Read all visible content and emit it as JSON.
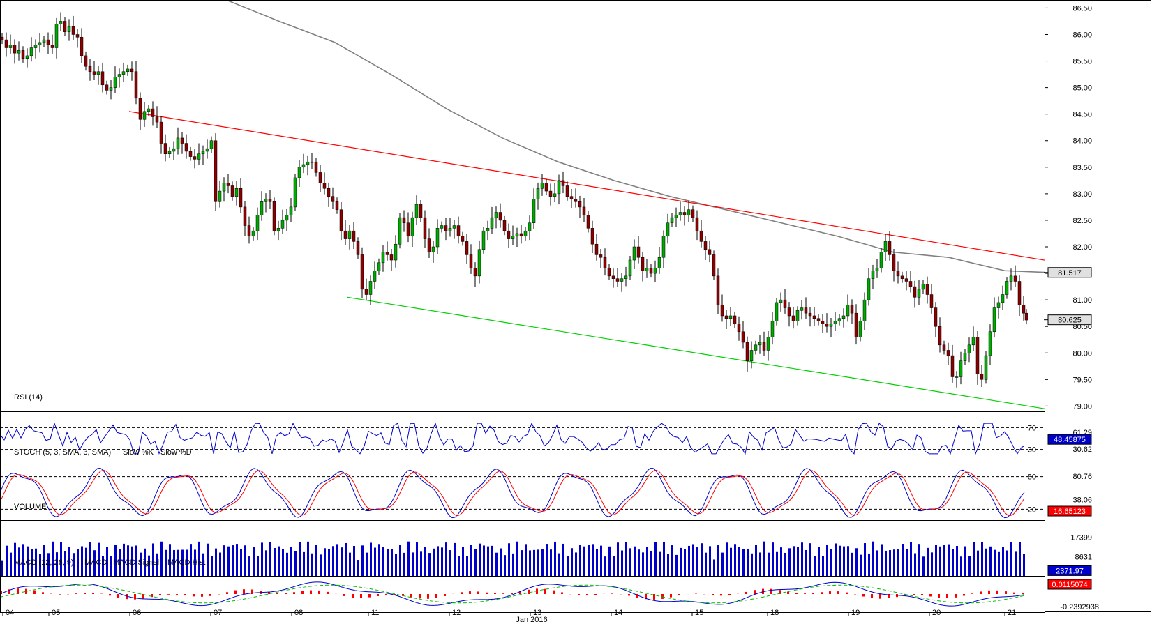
{
  "chart_data": {
    "type": "candlestick",
    "price_axis": {
      "ticks": [
        "86.50",
        "86.00",
        "85.50",
        "85.00",
        "84.50",
        "84.00",
        "83.50",
        "83.00",
        "82.50",
        "82.00",
        "81.50",
        "81.00",
        "80.50",
        "80.00",
        "79.50",
        "79.00"
      ],
      "range": [
        78.9,
        86.65
      ]
    },
    "date_axis": {
      "labels": [
        "04",
        "05",
        "06",
        "07",
        "08",
        "11",
        "12",
        "13",
        "14",
        "15",
        "18",
        "19",
        "20",
        "21"
      ],
      "month_label": "Jan 2016"
    },
    "price_series": [
      {
        "x": 0,
        "c": 85.9
      },
      {
        "x": 6,
        "c": 85.75
      },
      {
        "x": 12,
        "c": 85.8
      },
      {
        "x": 18,
        "c": 85.65
      },
      {
        "x": 24,
        "c": 85.7
      },
      {
        "x": 30,
        "c": 85.55
      },
      {
        "x": 36,
        "c": 85.6
      },
      {
        "x": 42,
        "c": 85.75
      },
      {
        "x": 48,
        "c": 85.8
      },
      {
        "x": 54,
        "c": 85.85
      },
      {
        "x": 60,
        "c": 85.9
      },
      {
        "x": 66,
        "c": 85.8
      },
      {
        "x": 72,
        "c": 85.75
      },
      {
        "x": 78,
        "c": 86.2
      },
      {
        "x": 84,
        "c": 86.25
      },
      {
        "x": 90,
        "c": 86.05
      },
      {
        "x": 96,
        "c": 86.15
      },
      {
        "x": 102,
        "c": 86.0
      },
      {
        "x": 108,
        "c": 85.95
      },
      {
        "x": 114,
        "c": 85.6
      },
      {
        "x": 120,
        "c": 85.4
      },
      {
        "x": 126,
        "c": 85.3
      },
      {
        "x": 132,
        "c": 85.25
      },
      {
        "x": 138,
        "c": 85.3
      },
      {
        "x": 144,
        "c": 85.05
      },
      {
        "x": 150,
        "c": 84.95
      },
      {
        "x": 156,
        "c": 85.0
      },
      {
        "x": 162,
        "c": 85.2
      },
      {
        "x": 168,
        "c": 85.25
      },
      {
        "x": 174,
        "c": 85.3
      },
      {
        "x": 180,
        "c": 85.35
      },
      {
        "x": 186,
        "c": 85.3
      },
      {
        "x": 192,
        "c": 84.8
      },
      {
        "x": 198,
        "c": 84.4
      },
      {
        "x": 204,
        "c": 84.55
      },
      {
        "x": 210,
        "c": 84.6
      },
      {
        "x": 216,
        "c": 84.45
      },
      {
        "x": 222,
        "c": 84.35
      },
      {
        "x": 228,
        "c": 83.95
      },
      {
        "x": 234,
        "c": 83.75
      },
      {
        "x": 240,
        "c": 83.8
      },
      {
        "x": 246,
        "c": 83.85
      },
      {
        "x": 252,
        "c": 84.05
      },
      {
        "x": 258,
        "c": 83.95
      },
      {
        "x": 264,
        "c": 83.8
      },
      {
        "x": 270,
        "c": 83.7
      },
      {
        "x": 276,
        "c": 83.65
      },
      {
        "x": 282,
        "c": 83.75
      },
      {
        "x": 288,
        "c": 83.8
      },
      {
        "x": 294,
        "c": 83.85
      },
      {
        "x": 300,
        "c": 84.0
      },
      {
        "x": 306,
        "c": 82.85
      },
      {
        "x": 312,
        "c": 83.05
      },
      {
        "x": 318,
        "c": 83.2
      },
      {
        "x": 324,
        "c": 83.15
      },
      {
        "x": 330,
        "c": 82.95
      },
      {
        "x": 336,
        "c": 83.1
      },
      {
        "x": 342,
        "c": 82.75
      },
      {
        "x": 348,
        "c": 82.4
      },
      {
        "x": 354,
        "c": 82.2
      },
      {
        "x": 360,
        "c": 82.3
      },
      {
        "x": 366,
        "c": 82.6
      },
      {
        "x": 372,
        "c": 82.85
      },
      {
        "x": 378,
        "c": 82.9
      },
      {
        "x": 384,
        "c": 82.85
      },
      {
        "x": 390,
        "c": 82.3
      },
      {
        "x": 396,
        "c": 82.35
      },
      {
        "x": 402,
        "c": 82.5
      },
      {
        "x": 408,
        "c": 82.6
      },
      {
        "x": 414,
        "c": 82.75
      },
      {
        "x": 420,
        "c": 83.3
      },
      {
        "x": 426,
        "c": 83.5
      },
      {
        "x": 432,
        "c": 83.55
      },
      {
        "x": 438,
        "c": 83.6
      },
      {
        "x": 444,
        "c": 83.6
      },
      {
        "x": 450,
        "c": 83.4
      },
      {
        "x": 456,
        "c": 83.2
      },
      {
        "x": 462,
        "c": 83.1
      },
      {
        "x": 468,
        "c": 82.95
      },
      {
        "x": 474,
        "c": 82.85
      },
      {
        "x": 480,
        "c": 82.7
      },
      {
        "x": 486,
        "c": 82.3
      },
      {
        "x": 492,
        "c": 82.15
      },
      {
        "x": 498,
        "c": 82.3
      },
      {
        "x": 504,
        "c": 82.1
      },
      {
        "x": 510,
        "c": 81.85
      },
      {
        "x": 516,
        "c": 81.2
      },
      {
        "x": 522,
        "c": 81.1
      },
      {
        "x": 528,
        "c": 81.35
      },
      {
        "x": 534,
        "c": 81.55
      },
      {
        "x": 540,
        "c": 81.7
      },
      {
        "x": 546,
        "c": 81.9
      },
      {
        "x": 552,
        "c": 81.85
      },
      {
        "x": 558,
        "c": 81.75
      },
      {
        "x": 564,
        "c": 82.05
      },
      {
        "x": 570,
        "c": 82.55
      },
      {
        "x": 576,
        "c": 82.45
      },
      {
        "x": 582,
        "c": 82.2
      },
      {
        "x": 588,
        "c": 82.55
      },
      {
        "x": 594,
        "c": 82.8
      },
      {
        "x": 600,
        "c": 82.55
      },
      {
        "x": 606,
        "c": 82.15
      },
      {
        "x": 612,
        "c": 81.9
      },
      {
        "x": 618,
        "c": 82.0
      },
      {
        "x": 624,
        "c": 82.35
      },
      {
        "x": 630,
        "c": 82.4
      },
      {
        "x": 636,
        "c": 82.3
      },
      {
        "x": 642,
        "c": 82.35
      },
      {
        "x": 648,
        "c": 82.4
      },
      {
        "x": 654,
        "c": 82.2
      },
      {
        "x": 660,
        "c": 82.1
      },
      {
        "x": 666,
        "c": 81.85
      },
      {
        "x": 672,
        "c": 81.6
      },
      {
        "x": 678,
        "c": 81.45
      },
      {
        "x": 684,
        "c": 81.95
      },
      {
        "x": 690,
        "c": 82.3
      },
      {
        "x": 696,
        "c": 82.35
      },
      {
        "x": 702,
        "c": 82.55
      },
      {
        "x": 708,
        "c": 82.65
      },
      {
        "x": 714,
        "c": 82.5
      },
      {
        "x": 720,
        "c": 82.3
      },
      {
        "x": 726,
        "c": 82.15
      },
      {
        "x": 732,
        "c": 82.2
      },
      {
        "x": 738,
        "c": 82.25
      },
      {
        "x": 744,
        "c": 82.2
      },
      {
        "x": 750,
        "c": 82.3
      },
      {
        "x": 756,
        "c": 82.45
      },
      {
        "x": 762,
        "c": 82.9
      },
      {
        "x": 768,
        "c": 83.1
      },
      {
        "x": 774,
        "c": 83.2
      },
      {
        "x": 780,
        "c": 83.05
      },
      {
        "x": 786,
        "c": 82.95
      },
      {
        "x": 792,
        "c": 83.0
      },
      {
        "x": 798,
        "c": 83.25
      },
      {
        "x": 804,
        "c": 83.15
      },
      {
        "x": 810,
        "c": 82.95
      },
      {
        "x": 816,
        "c": 82.9
      },
      {
        "x": 822,
        "c": 82.85
      },
      {
        "x": 828,
        "c": 82.75
      },
      {
        "x": 834,
        "c": 82.6
      },
      {
        "x": 840,
        "c": 82.35
      },
      {
        "x": 846,
        "c": 82.05
      },
      {
        "x": 852,
        "c": 81.85
      },
      {
        "x": 858,
        "c": 81.8
      },
      {
        "x": 864,
        "c": 81.6
      },
      {
        "x": 870,
        "c": 81.45
      },
      {
        "x": 876,
        "c": 81.4
      },
      {
        "x": 882,
        "c": 81.35
      },
      {
        "x": 888,
        "c": 81.4
      },
      {
        "x": 894,
        "c": 81.45
      },
      {
        "x": 900,
        "c": 81.75
      },
      {
        "x": 906,
        "c": 82.0
      },
      {
        "x": 912,
        "c": 81.8
      },
      {
        "x": 918,
        "c": 81.55
      },
      {
        "x": 924,
        "c": 81.6
      },
      {
        "x": 930,
        "c": 81.5
      },
      {
        "x": 936,
        "c": 81.6
      },
      {
        "x": 942,
        "c": 81.8
      },
      {
        "x": 948,
        "c": 82.2
      },
      {
        "x": 954,
        "c": 82.45
      },
      {
        "x": 960,
        "c": 82.55
      },
      {
        "x": 966,
        "c": 82.6
      },
      {
        "x": 972,
        "c": 82.65
      },
      {
        "x": 978,
        "c": 82.6
      },
      {
        "x": 984,
        "c": 82.7
      },
      {
        "x": 990,
        "c": 82.55
      },
      {
        "x": 996,
        "c": 82.3
      },
      {
        "x": 1002,
        "c": 82.1
      },
      {
        "x": 1008,
        "c": 81.95
      },
      {
        "x": 1014,
        "c": 81.85
      },
      {
        "x": 1020,
        "c": 81.45
      },
      {
        "x": 1026,
        "c": 80.9
      },
      {
        "x": 1032,
        "c": 80.7
      },
      {
        "x": 1038,
        "c": 80.65
      },
      {
        "x": 1044,
        "c": 80.7
      },
      {
        "x": 1050,
        "c": 80.55
      },
      {
        "x": 1056,
        "c": 80.4
      },
      {
        "x": 1062,
        "c": 80.2
      },
      {
        "x": 1068,
        "c": 79.85
      },
      {
        "x": 1074,
        "c": 80.05
      },
      {
        "x": 1080,
        "c": 80.15
      },
      {
        "x": 1086,
        "c": 80.2
      },
      {
        "x": 1092,
        "c": 80.05
      },
      {
        "x": 1098,
        "c": 80.3
      },
      {
        "x": 1104,
        "c": 80.6
      },
      {
        "x": 1110,
        "c": 80.95
      },
      {
        "x": 1116,
        "c": 81.0
      },
      {
        "x": 1122,
        "c": 80.85
      },
      {
        "x": 1128,
        "c": 80.7
      },
      {
        "x": 1134,
        "c": 80.6
      },
      {
        "x": 1140,
        "c": 80.8
      },
      {
        "x": 1146,
        "c": 80.85
      },
      {
        "x": 1152,
        "c": 80.75
      },
      {
        "x": 1158,
        "c": 80.7
      },
      {
        "x": 1164,
        "c": 80.65
      },
      {
        "x": 1170,
        "c": 80.6
      },
      {
        "x": 1176,
        "c": 80.55
      },
      {
        "x": 1182,
        "c": 80.5
      },
      {
        "x": 1188,
        "c": 80.55
      },
      {
        "x": 1194,
        "c": 80.6
      },
      {
        "x": 1200,
        "c": 80.65
      },
      {
        "x": 1206,
        "c": 80.7
      },
      {
        "x": 1212,
        "c": 80.9
      },
      {
        "x": 1218,
        "c": 80.75
      },
      {
        "x": 1224,
        "c": 80.3
      },
      {
        "x": 1230,
        "c": 80.6
      },
      {
        "x": 1236,
        "c": 81.0
      },
      {
        "x": 1242,
        "c": 81.4
      },
      {
        "x": 1248,
        "c": 81.55
      },
      {
        "x": 1254,
        "c": 81.6
      },
      {
        "x": 1260,
        "c": 81.9
      },
      {
        "x": 1266,
        "c": 82.1
      },
      {
        "x": 1272,
        "c": 81.85
      },
      {
        "x": 1278,
        "c": 81.55
      },
      {
        "x": 1284,
        "c": 81.45
      },
      {
        "x": 1290,
        "c": 81.4
      },
      {
        "x": 1296,
        "c": 81.35
      },
      {
        "x": 1302,
        "c": 81.25
      },
      {
        "x": 1308,
        "c": 81.05
      },
      {
        "x": 1314,
        "c": 81.2
      },
      {
        "x": 1320,
        "c": 81.3
      },
      {
        "x": 1326,
        "c": 81.1
      },
      {
        "x": 1332,
        "c": 80.85
      },
      {
        "x": 1338,
        "c": 80.5
      },
      {
        "x": 1344,
        "c": 80.15
      },
      {
        "x": 1350,
        "c": 80.05
      },
      {
        "x": 1356,
        "c": 79.95
      },
      {
        "x": 1362,
        "c": 79.55
      },
      {
        "x": 1368,
        "c": 79.55
      },
      {
        "x": 1374,
        "c": 79.85
      },
      {
        "x": 1380,
        "c": 80.0
      },
      {
        "x": 1386,
        "c": 80.15
      },
      {
        "x": 1392,
        "c": 80.3
      },
      {
        "x": 1398,
        "c": 79.6
      },
      {
        "x": 1404,
        "c": 79.5
      },
      {
        "x": 1410,
        "c": 79.95
      },
      {
        "x": 1416,
        "c": 80.4
      },
      {
        "x": 1422,
        "c": 80.85
      },
      {
        "x": 1428,
        "c": 80.95
      },
      {
        "x": 1434,
        "c": 81.1
      },
      {
        "x": 1440,
        "c": 81.35
      },
      {
        "x": 1446,
        "c": 81.45
      },
      {
        "x": 1452,
        "c": 81.35
      },
      {
        "x": 1458,
        "c": 80.9
      },
      {
        "x": 1464,
        "c": 80.75
      },
      {
        "x": 1468,
        "c": 80.62
      }
    ],
    "moving_average": {
      "color": "#808080",
      "points": [
        {
          "x": 315,
          "y": 86.7
        },
        {
          "x": 400,
          "y": 86.25
        },
        {
          "x": 480,
          "y": 85.85
        },
        {
          "x": 560,
          "y": 85.25
        },
        {
          "x": 640,
          "y": 84.6
        },
        {
          "x": 720,
          "y": 84.05
        },
        {
          "x": 800,
          "y": 83.6
        },
        {
          "x": 880,
          "y": 83.25
        },
        {
          "x": 960,
          "y": 82.95
        },
        {
          "x": 1040,
          "y": 82.7
        },
        {
          "x": 1120,
          "y": 82.45
        },
        {
          "x": 1200,
          "y": 82.2
        },
        {
          "x": 1280,
          "y": 81.9
        },
        {
          "x": 1360,
          "y": 81.8
        },
        {
          "x": 1440,
          "y": 81.55
        },
        {
          "x": 1497,
          "y": 81.52
        }
      ]
    },
    "resistance_line": {
      "color": "#ff0000",
      "from": {
        "x": 185,
        "y": 84.55
      },
      "to": {
        "x": 1497,
        "y": 81.75
      }
    },
    "support_line": {
      "color": "#00d000",
      "from": {
        "x": 498,
        "y": 81.05
      },
      "to": {
        "x": 1497,
        "y": 78.95
      }
    },
    "last_values": {
      "ma": "81.517",
      "price": "80.625"
    },
    "panels": {
      "rsi": {
        "title": "RSI (14)",
        "levels": [
          "70",
          "30"
        ],
        "axis_labels": [
          "61.29",
          "30.62"
        ],
        "current": "48.45875",
        "color": "#0000cc"
      },
      "stoch": {
        "title": "STOCH (5, 3, SMA, 3, SMA)",
        "k_label": "Slow %K",
        "d_label": "Slow %D",
        "levels": [
          "80",
          "20"
        ],
        "axis_labels": [
          "80.76",
          "38.06"
        ],
        "current": "16.65123",
        "k_color": "#0000cc",
        "d_color": "#ff0000"
      },
      "volume": {
        "title": "VOLUME",
        "axis_labels": [
          "17399",
          "8631"
        ],
        "current": "2371.97",
        "color": "#0000cc"
      },
      "macd": {
        "title": "MACD (12, 26, 9)",
        "macd_label": "MACD",
        "signal_label": "MACD Signal",
        "hist_label": "MACD Hist",
        "axis_labels": [
          "-0.2392938"
        ],
        "current": "0.0115074",
        "macd_color": "#0000cc",
        "signal_color": "#00bb00",
        "hist_color": "#ff0000"
      }
    }
  }
}
